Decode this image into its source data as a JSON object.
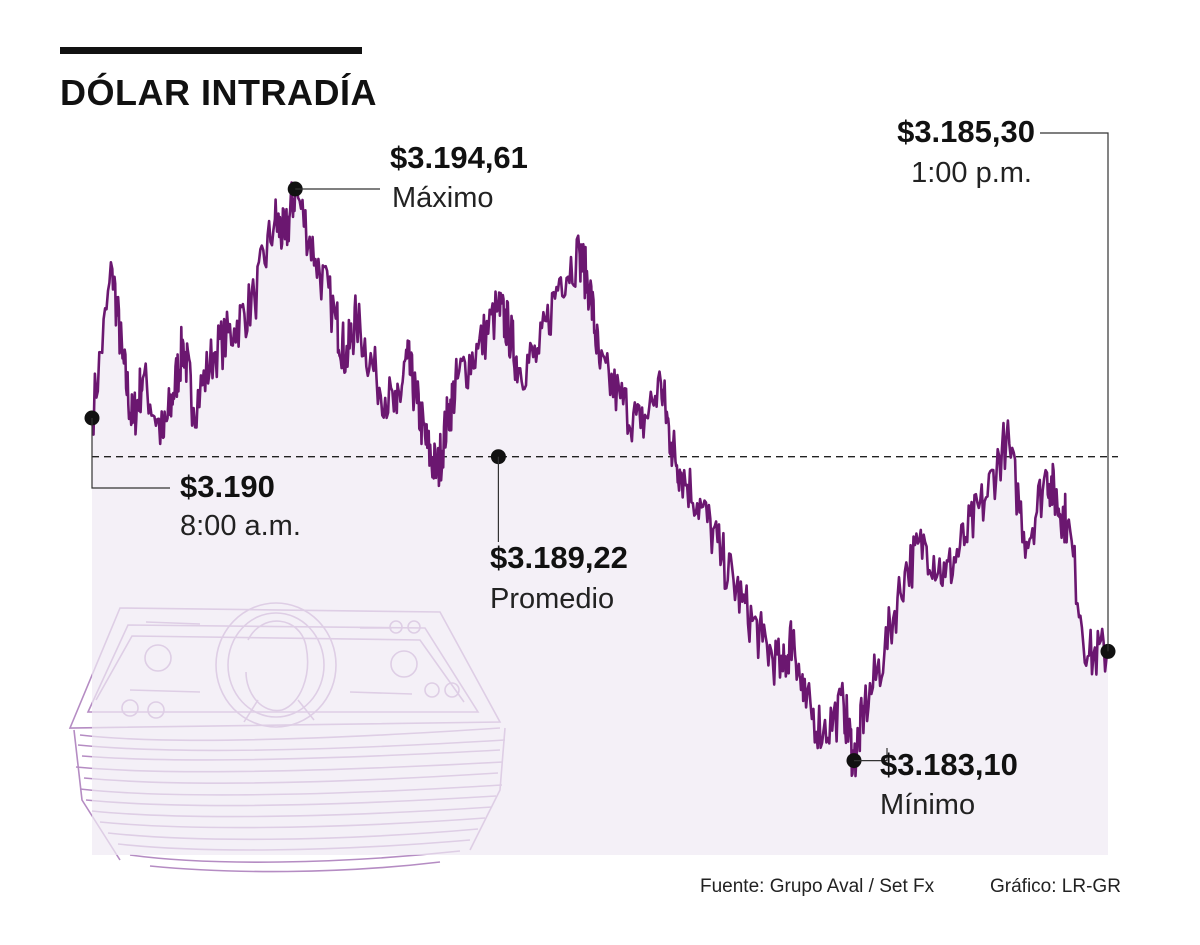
{
  "colors": {
    "line": "#6b1770",
    "area": "#efe9f3",
    "bills": "#b58cc3",
    "ink": "#111111"
  },
  "title": "DÓLAR INTRADÍA",
  "callouts": {
    "open": {
      "value": "$3.190",
      "label": "8:00 a.m."
    },
    "max": {
      "value": "$3.194,61",
      "label": "Máximo"
    },
    "average": {
      "value": "$3.189,22",
      "label": "Promedio"
    },
    "min": {
      "value": "$3.183,10",
      "label": "Mínimo"
    },
    "close": {
      "value": "$3.185,30",
      "label": "1:00 p.m."
    }
  },
  "footer": {
    "source": "Fuente: Grupo Aval / Set Fx",
    "credit": "Gráfico: LR-GR"
  },
  "chart_data": {
    "type": "area",
    "xlabel": "",
    "ylabel": "",
    "time_range": [
      "8:00 a.m.",
      "1:00 p.m."
    ],
    "ylim": [
      3181.2,
      3196.0
    ],
    "reference_line": {
      "value": 3189.22,
      "style": "dashed"
    },
    "series": [
      {
        "x": [
          0,
          2,
          3,
          4,
          5,
          7,
          8,
          9,
          10,
          12,
          14,
          16,
          18,
          19,
          20,
          22,
          24,
          25,
          26,
          28,
          30,
          31,
          32,
          33,
          34,
          35,
          36,
          38,
          40,
          41,
          42,
          44,
          46,
          48,
          49,
          50,
          52,
          54,
          56,
          57,
          58,
          60,
          62,
          64,
          66,
          68,
          69,
          70,
          72,
          74,
          75,
          76,
          78,
          80,
          82,
          84,
          86,
          88,
          90,
          92,
          94,
          95,
          96,
          98,
          100
        ],
        "values": [
          3190.0,
          3193.0,
          3191.2,
          3189.9,
          3190.8,
          3189.6,
          3190.5,
          3191.5,
          3190.2,
          3191.3,
          3191.8,
          3192.4,
          3194.0,
          3193.6,
          3194.61,
          3193.2,
          3192.0,
          3191.2,
          3192.0,
          3190.8,
          3190.1,
          3191.2,
          3190.3,
          3189.4,
          3188.9,
          3190.0,
          3190.8,
          3191.4,
          3192.2,
          3191.8,
          3191.0,
          3191.3,
          3192.8,
          3193.3,
          3192.6,
          3191.0,
          3190.4,
          3189.8,
          3190.7,
          3189.5,
          3188.9,
          3188.2,
          3187.2,
          3186.3,
          3185.5,
          3184.9,
          3185.7,
          3184.3,
          3183.7,
          3184.2,
          3183.1,
          3184.1,
          3185.3,
          3186.9,
          3187.5,
          3186.8,
          3187.6,
          3188.4,
          3189.6,
          3187.5,
          3188.9,
          3188.3,
          3187.9,
          3185.2,
          3185.3
        ]
      }
    ]
  }
}
